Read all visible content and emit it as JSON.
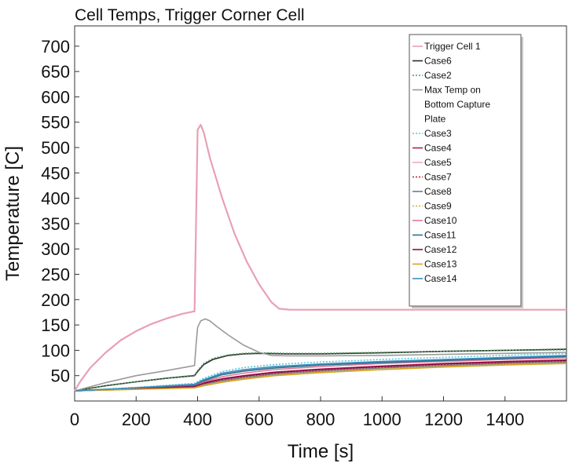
{
  "chart_data": {
    "type": "line",
    "title": "Cell Temps, Trigger Corner Cell",
    "xlabel": "Time [s]",
    "ylabel": "Temperature [C]",
    "xlim": [
      0,
      1600
    ],
    "ylim": [
      0,
      740
    ],
    "xticks": [
      0,
      200,
      400,
      600,
      800,
      1000,
      1200,
      1400
    ],
    "xtick_labels": [
      "0",
      "200",
      "400",
      "600",
      "800",
      "1000",
      "1200",
      "1400"
    ],
    "yticks": [
      50,
      100,
      150,
      200,
      250,
      300,
      350,
      400,
      450,
      500,
      550,
      600,
      650,
      700
    ],
    "ytick_labels": [
      "50",
      "100",
      "150",
      "200",
      "250",
      "300",
      "350",
      "400",
      "450",
      "500",
      "550",
      "600",
      "650",
      "700"
    ],
    "grid": false,
    "legend_position": "top-right",
    "series": [
      {
        "name": "Trigger Cell 1",
        "color": "#e8a0b4",
        "dash": "",
        "x": [
          0,
          20,
          50,
          100,
          150,
          200,
          250,
          300,
          350,
          390,
          395,
          400,
          410,
          420,
          440,
          480,
          520,
          560,
          600,
          640,
          665,
          700,
          800,
          1000,
          1200,
          1400,
          1600
        ],
        "y": [
          20,
          40,
          65,
          95,
          120,
          138,
          152,
          163,
          172,
          177,
          350,
          535,
          545,
          530,
          480,
          400,
          330,
          275,
          230,
          195,
          182,
          180,
          180,
          180,
          180,
          180,
          180
        ]
      },
      {
        "name": "Case6",
        "color": "#2b2b2b",
        "dash": "",
        "x": [
          0,
          100,
          200,
          300,
          390,
          400,
          420,
          450,
          500,
          550,
          600,
          700,
          800,
          1000,
          1200,
          1400,
          1600
        ],
        "y": [
          20,
          30,
          38,
          45,
          50,
          58,
          72,
          82,
          90,
          93,
          94,
          93,
          93,
          95,
          98,
          100,
          102
        ]
      },
      {
        "name": "Case2",
        "color": "#4a9a5a",
        "dash": "2,2",
        "x": [
          0,
          100,
          200,
          300,
          390,
          400,
          420,
          450,
          500,
          550,
          600,
          700,
          800,
          1000,
          1200,
          1400,
          1600
        ],
        "y": [
          20,
          30,
          38,
          45,
          51,
          60,
          74,
          84,
          91,
          94,
          95,
          94,
          94,
          96,
          98,
          100,
          101
        ]
      },
      {
        "name": "Max Temp on Bottom Capture Plate",
        "color": "#9a9a9a",
        "dash": "",
        "x": [
          0,
          50,
          100,
          200,
          300,
          390,
          395,
          400,
          410,
          425,
          440,
          460,
          500,
          550,
          600,
          640,
          700,
          800,
          1000,
          1200,
          1400,
          1600
        ],
        "y": [
          20,
          28,
          36,
          50,
          60,
          70,
          110,
          145,
          158,
          162,
          158,
          148,
          130,
          110,
          96,
          90,
          89,
          89,
          90,
          92,
          94,
          96
        ]
      },
      {
        "name": "Case3",
        "color": "#55c8d8",
        "dash": "2,2",
        "x": [
          0,
          200,
          390,
          420,
          480,
          550,
          650,
          800,
          1000,
          1200,
          1400,
          1600
        ],
        "y": [
          20,
          27,
          35,
          45,
          58,
          66,
          72,
          77,
          82,
          86,
          90,
          94
        ]
      },
      {
        "name": "Case4",
        "color": "#b02050",
        "dash": "",
        "x": [
          0,
          200,
          390,
          420,
          480,
          550,
          650,
          800,
          1000,
          1200,
          1400,
          1600
        ],
        "y": [
          20,
          25,
          30,
          36,
          44,
          50,
          57,
          63,
          69,
          74,
          78,
          81
        ]
      },
      {
        "name": "Case5",
        "color": "#f0a8c0",
        "dash": "",
        "x": [
          0,
          200,
          390,
          420,
          480,
          550,
          650,
          800,
          1000,
          1200,
          1400,
          1600
        ],
        "y": [
          20,
          26,
          33,
          42,
          54,
          61,
          67,
          72,
          77,
          81,
          84,
          87
        ]
      },
      {
        "name": "Case7",
        "color": "#b02030",
        "dash": "2,2",
        "x": [
          0,
          200,
          390,
          420,
          480,
          550,
          650,
          800,
          1000,
          1200,
          1400,
          1600
        ],
        "y": [
          20,
          24,
          29,
          34,
          41,
          47,
          54,
          60,
          66,
          71,
          75,
          78
        ]
      },
      {
        "name": "Case8",
        "color": "#7a7a7a",
        "dash": "",
        "x": [
          0,
          200,
          390,
          420,
          480,
          550,
          650,
          800,
          1000,
          1200,
          1400,
          1600
        ],
        "y": [
          20,
          24,
          28,
          33,
          40,
          46,
          53,
          59,
          65,
          70,
          74,
          77
        ]
      },
      {
        "name": "Case9",
        "color": "#c8b040",
        "dash": "2,2",
        "x": [
          0,
          200,
          390,
          420,
          480,
          550,
          650,
          800,
          1000,
          1200,
          1400,
          1600
        ],
        "y": [
          20,
          23,
          27,
          31,
          38,
          44,
          51,
          57,
          63,
          68,
          72,
          75
        ]
      },
      {
        "name": "Case10",
        "color": "#e07898",
        "dash": "",
        "x": [
          0,
          200,
          390,
          420,
          480,
          550,
          650,
          800,
          1000,
          1200,
          1400,
          1600
        ],
        "y": [
          20,
          25,
          31,
          38,
          48,
          55,
          62,
          68,
          74,
          78,
          82,
          85
        ]
      },
      {
        "name": "Case11",
        "color": "#2a7090",
        "dash": "",
        "x": [
          0,
          200,
          390,
          420,
          480,
          550,
          650,
          800,
          1000,
          1200,
          1400,
          1600
        ],
        "y": [
          20,
          26,
          32,
          40,
          52,
          59,
          65,
          71,
          76,
          80,
          84,
          88
        ]
      },
      {
        "name": "Case12",
        "color": "#8a1048",
        "dash": "",
        "x": [
          0,
          200,
          390,
          420,
          480,
          550,
          650,
          800,
          1000,
          1200,
          1400,
          1600
        ],
        "y": [
          20,
          24,
          29,
          35,
          43,
          49,
          56,
          62,
          68,
          73,
          77,
          80
        ]
      },
      {
        "name": "Case13",
        "color": "#d8a020",
        "dash": "",
        "x": [
          0,
          200,
          390,
          420,
          480,
          550,
          650,
          800,
          1000,
          1200,
          1400,
          1600
        ],
        "y": [
          20,
          23,
          26,
          30,
          37,
          43,
          50,
          56,
          62,
          67,
          71,
          74
        ]
      },
      {
        "name": "Case14",
        "color": "#3a90c0",
        "dash": "",
        "x": [
          0,
          200,
          390,
          420,
          480,
          550,
          650,
          800,
          1000,
          1200,
          1400,
          1600
        ],
        "y": [
          20,
          26,
          33,
          42,
          55,
          62,
          68,
          73,
          78,
          82,
          86,
          90
        ]
      }
    ],
    "legend_entries": [
      {
        "label": "Trigger Cell 1",
        "series": 0
      },
      {
        "label": "Case6",
        "series": 1
      },
      {
        "label": "Case2",
        "series": 2
      },
      {
        "label": "Max Temp on",
        "series": 3
      },
      {
        "label": "Bottom Capture",
        "series": -1
      },
      {
        "label": "Plate",
        "series": -1
      },
      {
        "label": "Case3",
        "series": 4
      },
      {
        "label": "Case4",
        "series": 5
      },
      {
        "label": "Case5",
        "series": 6
      },
      {
        "label": "Case7",
        "series": 7
      },
      {
        "label": "Case8",
        "series": 8
      },
      {
        "label": "Case9",
        "series": 9
      },
      {
        "label": "Case10",
        "series": 10
      },
      {
        "label": "Case11",
        "series": 11
      },
      {
        "label": "Case12",
        "series": 12
      },
      {
        "label": "Case13",
        "series": 13
      },
      {
        "label": "Case14",
        "series": 14
      }
    ]
  }
}
